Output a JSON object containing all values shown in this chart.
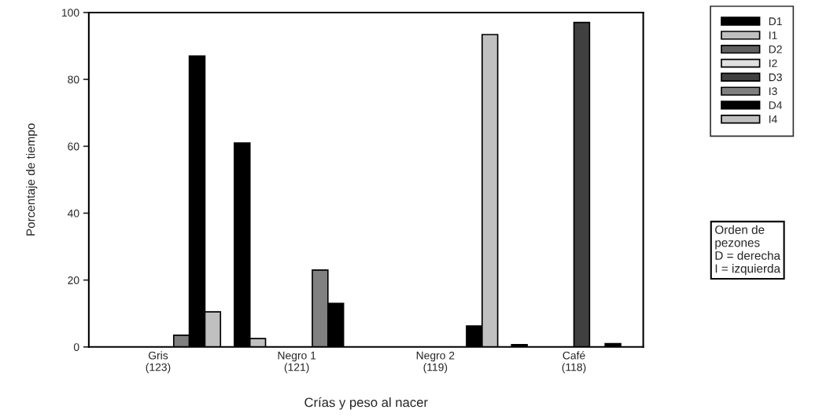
{
  "chart_data": {
    "type": "bar",
    "xlabel": "Crías y peso al nacer",
    "ylabel": "Porcentaje de tiempo",
    "categories": [
      "Gris\n(123)",
      "Negro 1\n(121)",
      "Negro 2\n(119)",
      "Café\n(118)"
    ],
    "series": [
      {
        "name": "D1",
        "color": "#000000",
        "values": [
          null,
          61,
          null,
          0.7
        ]
      },
      {
        "name": "I1",
        "color": "#c0c0c0",
        "values": [
          null,
          2.5,
          null,
          null
        ]
      },
      {
        "name": "D2",
        "color": "#606060",
        "values": [
          null,
          null,
          null,
          null
        ]
      },
      {
        "name": "I2",
        "color": "#e0e0e0",
        "values": [
          null,
          null,
          null,
          null
        ]
      },
      {
        "name": "D3",
        "color": "#404040",
        "values": [
          null,
          null,
          null,
          97
        ]
      },
      {
        "name": "I3",
        "color": "#808080",
        "values": [
          3.5,
          23,
          null,
          null
        ]
      },
      {
        "name": "D4",
        "color": "#000000",
        "values": [
          87,
          13,
          6.3,
          1
        ]
      },
      {
        "name": "I4",
        "color": "#c0c0c0",
        "values": [
          10.5,
          null,
          93.4,
          null
        ]
      }
    ],
    "ylim": [
      0,
      100
    ],
    "yticks": [
      0,
      20,
      40,
      60,
      80,
      100
    ],
    "grid": false,
    "legend": "top right",
    "annotations": [
      "Orden de\npezones\nD = derecha\nI = izquierda"
    ]
  }
}
